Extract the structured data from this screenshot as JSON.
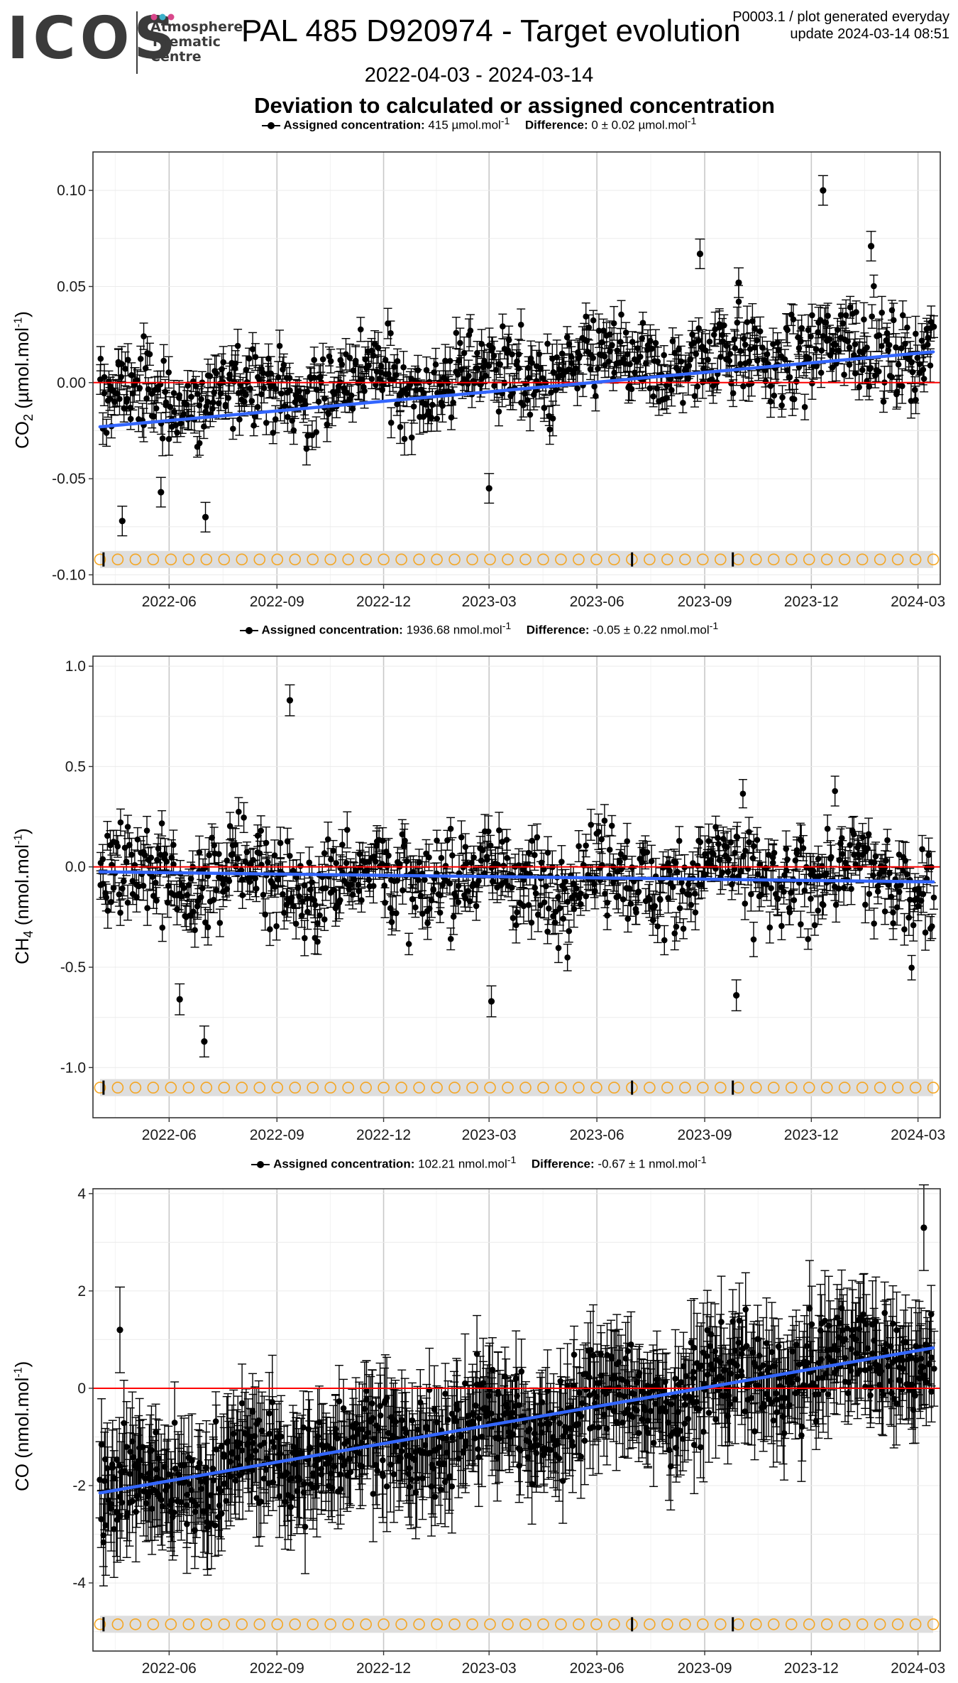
{
  "header": {
    "logo_text": "ICOS",
    "logo_sub": [
      "Atmosphere",
      "Thematic",
      "Centre"
    ],
    "title": "PAL 485 D920974 - Target evolution",
    "meta_line1": "P0003.1 / plot generated everyday",
    "meta_line2": "update  2024-03-14 08:51",
    "date_range": "2022-04-03 - 2024-03-14",
    "subtitle": "Deviation to calculated or assigned concentration"
  },
  "colors": {
    "points": "#000000",
    "trend": "#3366ff",
    "zero_line": "#ff0000",
    "flag_circles": "#f5a623",
    "flag_band": "#dedede",
    "grid": "#ebebeb",
    "logo_dot_1": "#d9478b",
    "logo_dot_2": "#3db0c9",
    "logo_dot_3": "#d9478b"
  },
  "panels": [
    {
      "id": "co2",
      "species": "CO",
      "species_sub": "2",
      "unit": "µmol.mol",
      "unit_sup": "-1",
      "legend": {
        "assigned_label": "Assigned concentration:",
        "assigned_value": "415 µmol.mol",
        "assigned_sup": "-1",
        "difference_label": "Difference:",
        "difference_value": "0 ± 0.02 µmol.mol",
        "difference_sup": "-1"
      }
    },
    {
      "id": "ch4",
      "species": "CH",
      "species_sub": "4",
      "unit": "nmol.mol",
      "unit_sup": "-1",
      "legend": {
        "assigned_label": "Assigned concentration:",
        "assigned_value": "1936.68 nmol.mol",
        "assigned_sup": "-1",
        "difference_label": "Difference:",
        "difference_value": "-0.05 ± 0.22 nmol.mol",
        "difference_sup": "-1"
      }
    },
    {
      "id": "co",
      "species": "CO",
      "species_sub": "",
      "unit": "nmol.mol",
      "unit_sup": "-1",
      "legend": {
        "assigned_label": "Assigned concentration:",
        "assigned_value": "102.21 nmol.mol",
        "assigned_sup": "-1",
        "difference_label": "Difference:",
        "difference_value": "-0.67 ± 1 nmol.mol",
        "difference_sup": "-1"
      }
    }
  ],
  "chart_data": [
    {
      "type": "scatter",
      "title": "",
      "ylabel": "CO2 (µmol.mol-1)",
      "x_range": [
        "2022-04-03",
        "2024-03-14"
      ],
      "ylim": [
        -0.105,
        0.12
      ],
      "x_ticks": [
        "2022-06",
        "2022-09",
        "2022-12",
        "2023-03",
        "2023-06",
        "2023-09",
        "2023-12",
        "2024-03"
      ],
      "y_ticks": [
        -0.1,
        -0.05,
        0.0,
        0.05,
        0.1
      ],
      "y_tick_labels": [
        "-0.10",
        "-0.05",
        "0.00",
        "0.05",
        "0.10"
      ],
      "zero_line": 0,
      "trend_line": {
        "x": [
          "2022-04-03",
          "2024-03-14"
        ],
        "y": [
          -0.023,
          0.016
        ]
      },
      "point_band": {
        "center_start": -0.01,
        "center_end": 0.02,
        "spread": 0.02,
        "error_bar": 0.007
      },
      "outliers": [
        {
          "x": "2023-12-11",
          "y": 0.1
        },
        {
          "x": "2023-08-28",
          "y": 0.067
        },
        {
          "x": "2024-01-21",
          "y": 0.071
        },
        {
          "x": "2023-09-30",
          "y": 0.052
        },
        {
          "x": "2022-04-22",
          "y": -0.072
        },
        {
          "x": "2022-07-02",
          "y": -0.07
        },
        {
          "x": "2023-03-01",
          "y": -0.055
        },
        {
          "x": "2022-05-25",
          "y": -0.057
        }
      ],
      "flag_level": -0.092,
      "flag_markers": [
        "2022-04-06",
        "2023-07-01",
        "2023-09-25"
      ]
    },
    {
      "type": "scatter",
      "title": "",
      "ylabel": "CH4 (nmol.mol-1)",
      "x_range": [
        "2022-04-03",
        "2024-03-14"
      ],
      "ylim": [
        -1.25,
        1.05
      ],
      "x_ticks": [
        "2022-06",
        "2022-09",
        "2022-12",
        "2023-03",
        "2023-06",
        "2023-09",
        "2023-12",
        "2024-03"
      ],
      "y_ticks": [
        -1.0,
        -0.5,
        0.0,
        0.5,
        1.0
      ],
      "y_tick_labels": [
        "-1.0",
        "-0.5",
        "0.0",
        "0.5",
        "1.0"
      ],
      "zero_line": 0,
      "trend_line": {
        "x": [
          "2022-04-03",
          "2024-03-14"
        ],
        "y": [
          -0.025,
          -0.075
        ]
      },
      "point_band": {
        "center_start": -0.05,
        "center_end": -0.05,
        "spread": 0.22,
        "error_bar": 0.07
      },
      "outliers": [
        {
          "x": "2022-09-12",
          "y": 0.83
        },
        {
          "x": "2022-07-01",
          "y": -0.87
        },
        {
          "x": "2022-06-10",
          "y": -0.66
        },
        {
          "x": "2023-03-03",
          "y": -0.67
        },
        {
          "x": "2023-09-28",
          "y": -0.64
        }
      ],
      "flag_level": -1.1,
      "flag_markers": [
        "2022-04-06",
        "2023-07-01",
        "2023-09-25"
      ]
    },
    {
      "type": "scatter",
      "title": "",
      "ylabel": "CO (nmol.mol-1)",
      "x_range": [
        "2022-04-03",
        "2024-03-14"
      ],
      "ylim": [
        -5.4,
        4.1
      ],
      "x_ticks": [
        "2022-06",
        "2022-09",
        "2022-12",
        "2023-03",
        "2023-06",
        "2023-09",
        "2023-12",
        "2024-03"
      ],
      "y_ticks": [
        -4,
        -2,
        0,
        2,
        4
      ],
      "y_tick_labels": [
        "-4",
        "-2",
        "0",
        "2",
        "4"
      ],
      "zero_line": 0,
      "trend_line": {
        "x": [
          "2022-04-03",
          "2024-03-14"
        ],
        "y": [
          -2.15,
          0.83
        ]
      },
      "point_band": {
        "center_start": -2.15,
        "center_end": 0.83,
        "spread": 0.9,
        "error_bar": 0.8
      },
      "outliers": [
        {
          "x": "2024-03-06",
          "y": 3.3
        },
        {
          "x": "2022-04-20",
          "y": 1.2
        }
      ],
      "flag_level": -4.85,
      "flag_markers": [
        "2022-04-06",
        "2023-07-01",
        "2023-09-25"
      ]
    }
  ]
}
